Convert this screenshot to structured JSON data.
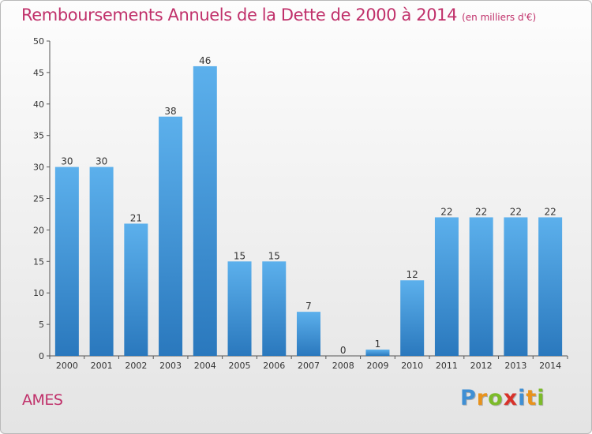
{
  "chart_data": {
    "type": "bar",
    "title": "Remboursements Annuels de la Dette de 2000 à 2014",
    "subtitle": "(en milliers d'€)",
    "categories": [
      "2000",
      "2001",
      "2002",
      "2003",
      "2004",
      "2005",
      "2006",
      "2007",
      "2008",
      "2009",
      "2010",
      "2011",
      "2012",
      "2013",
      "2014"
    ],
    "values": [
      30,
      30,
      21,
      38,
      46,
      15,
      15,
      7,
      0,
      1,
      12,
      22,
      22,
      22,
      22
    ],
    "ylim": [
      0,
      50
    ],
    "yticks": [
      0,
      5,
      10,
      15,
      20,
      25,
      30,
      35,
      40,
      45,
      50
    ],
    "xlabel": "",
    "ylabel": "",
    "grid": false,
    "bar_color": "#3d95d8"
  },
  "footer": {
    "commune": "AMES"
  },
  "brand": {
    "letters": [
      "P",
      "r",
      "o",
      "x",
      "i",
      "t",
      "i"
    ],
    "colors": [
      "#3f8fd4",
      "#e8921c",
      "#7cbb2a",
      "#d8322a",
      "#3f8fd4",
      "#e8921c",
      "#7cbb2a"
    ]
  },
  "colors": {
    "title": "#c0306a",
    "axis": "#555555"
  }
}
